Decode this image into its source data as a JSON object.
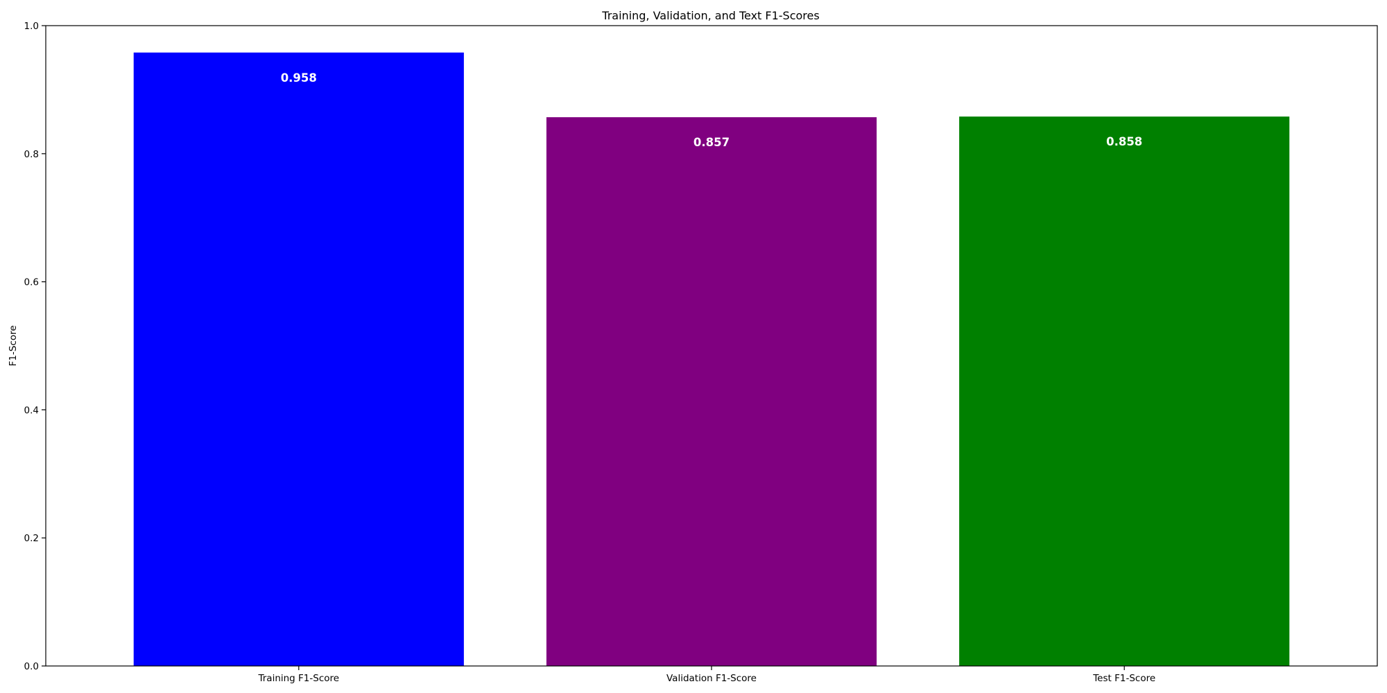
{
  "chart_data": {
    "type": "bar",
    "title": "Training, Validation, and Text F1-Scores",
    "xlabel": "",
    "ylabel": "F1-Score",
    "categories": [
      "Training F1-Score",
      "Validation F1-Score",
      "Test F1-Score"
    ],
    "values": [
      0.958,
      0.857,
      0.858
    ],
    "value_labels": [
      "0.958",
      "0.857",
      "0.858"
    ],
    "colors": [
      "#0000ff",
      "#800080",
      "#008000"
    ],
    "ylim": [
      0,
      1.0
    ],
    "yticks": [
      0.0,
      0.2,
      0.4,
      0.6,
      0.8,
      1.0
    ],
    "ytick_labels": [
      "0.0",
      "0.2",
      "0.4",
      "0.6",
      "0.8",
      "1.0"
    ],
    "grid": false,
    "legend": "none"
  }
}
